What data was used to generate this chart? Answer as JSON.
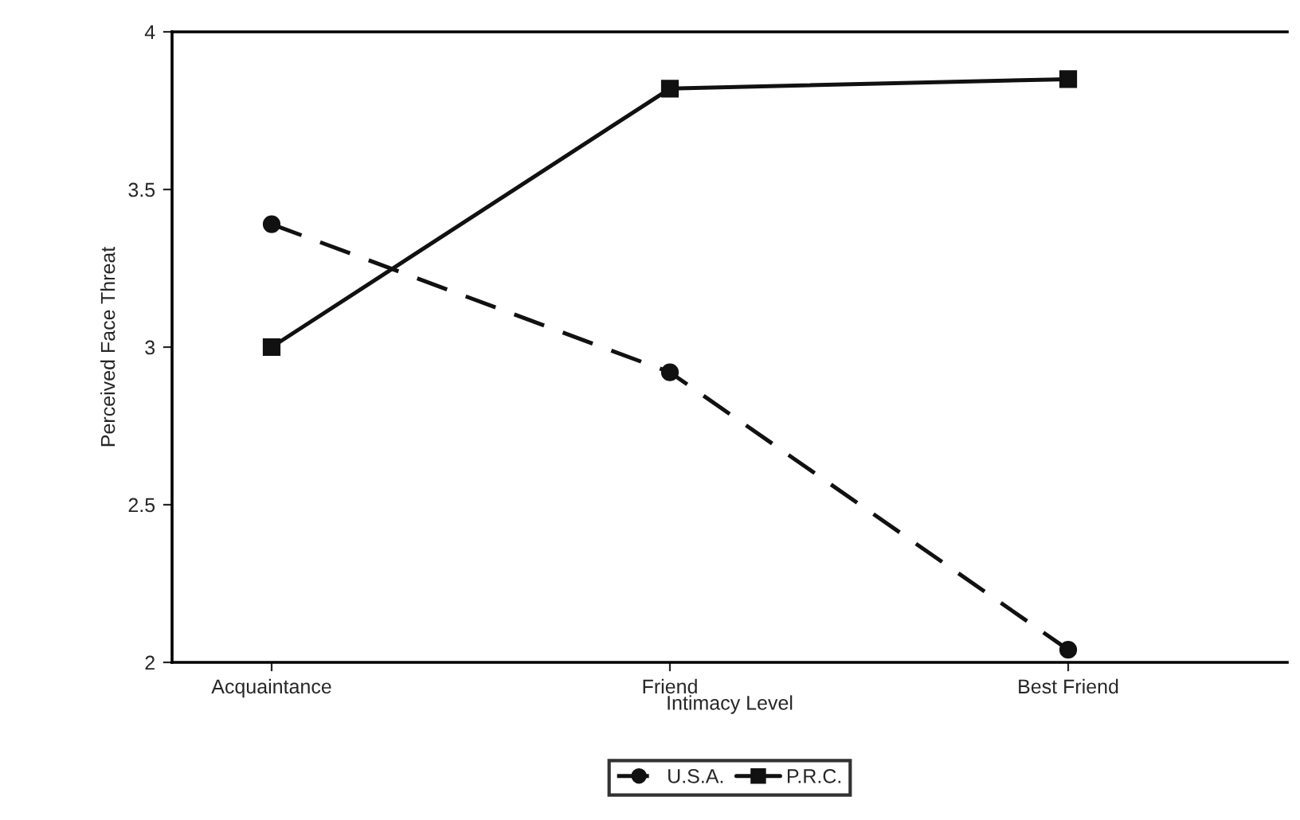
{
  "chart_data": {
    "type": "line",
    "xlabel": "Intimacy Level",
    "ylabel": "Perceived Face Threat",
    "categories": [
      "Acquaintance",
      "Friend",
      "Best Friend"
    ],
    "series": [
      {
        "name": "U.S.A.",
        "color": "#111111",
        "values": [
          3.39,
          2.92,
          2.04
        ],
        "marker": "circle",
        "line_style": "dashed"
      },
      {
        "name": "P.R.C.",
        "color": "#111111",
        "values": [
          3.0,
          3.82,
          3.85
        ],
        "marker": "square",
        "line_style": "solid"
      }
    ],
    "ylim": [
      2,
      4
    ],
    "yticks": [
      2,
      2.5,
      3,
      3.5,
      4
    ],
    "grid": false,
    "legend": "bottom"
  }
}
